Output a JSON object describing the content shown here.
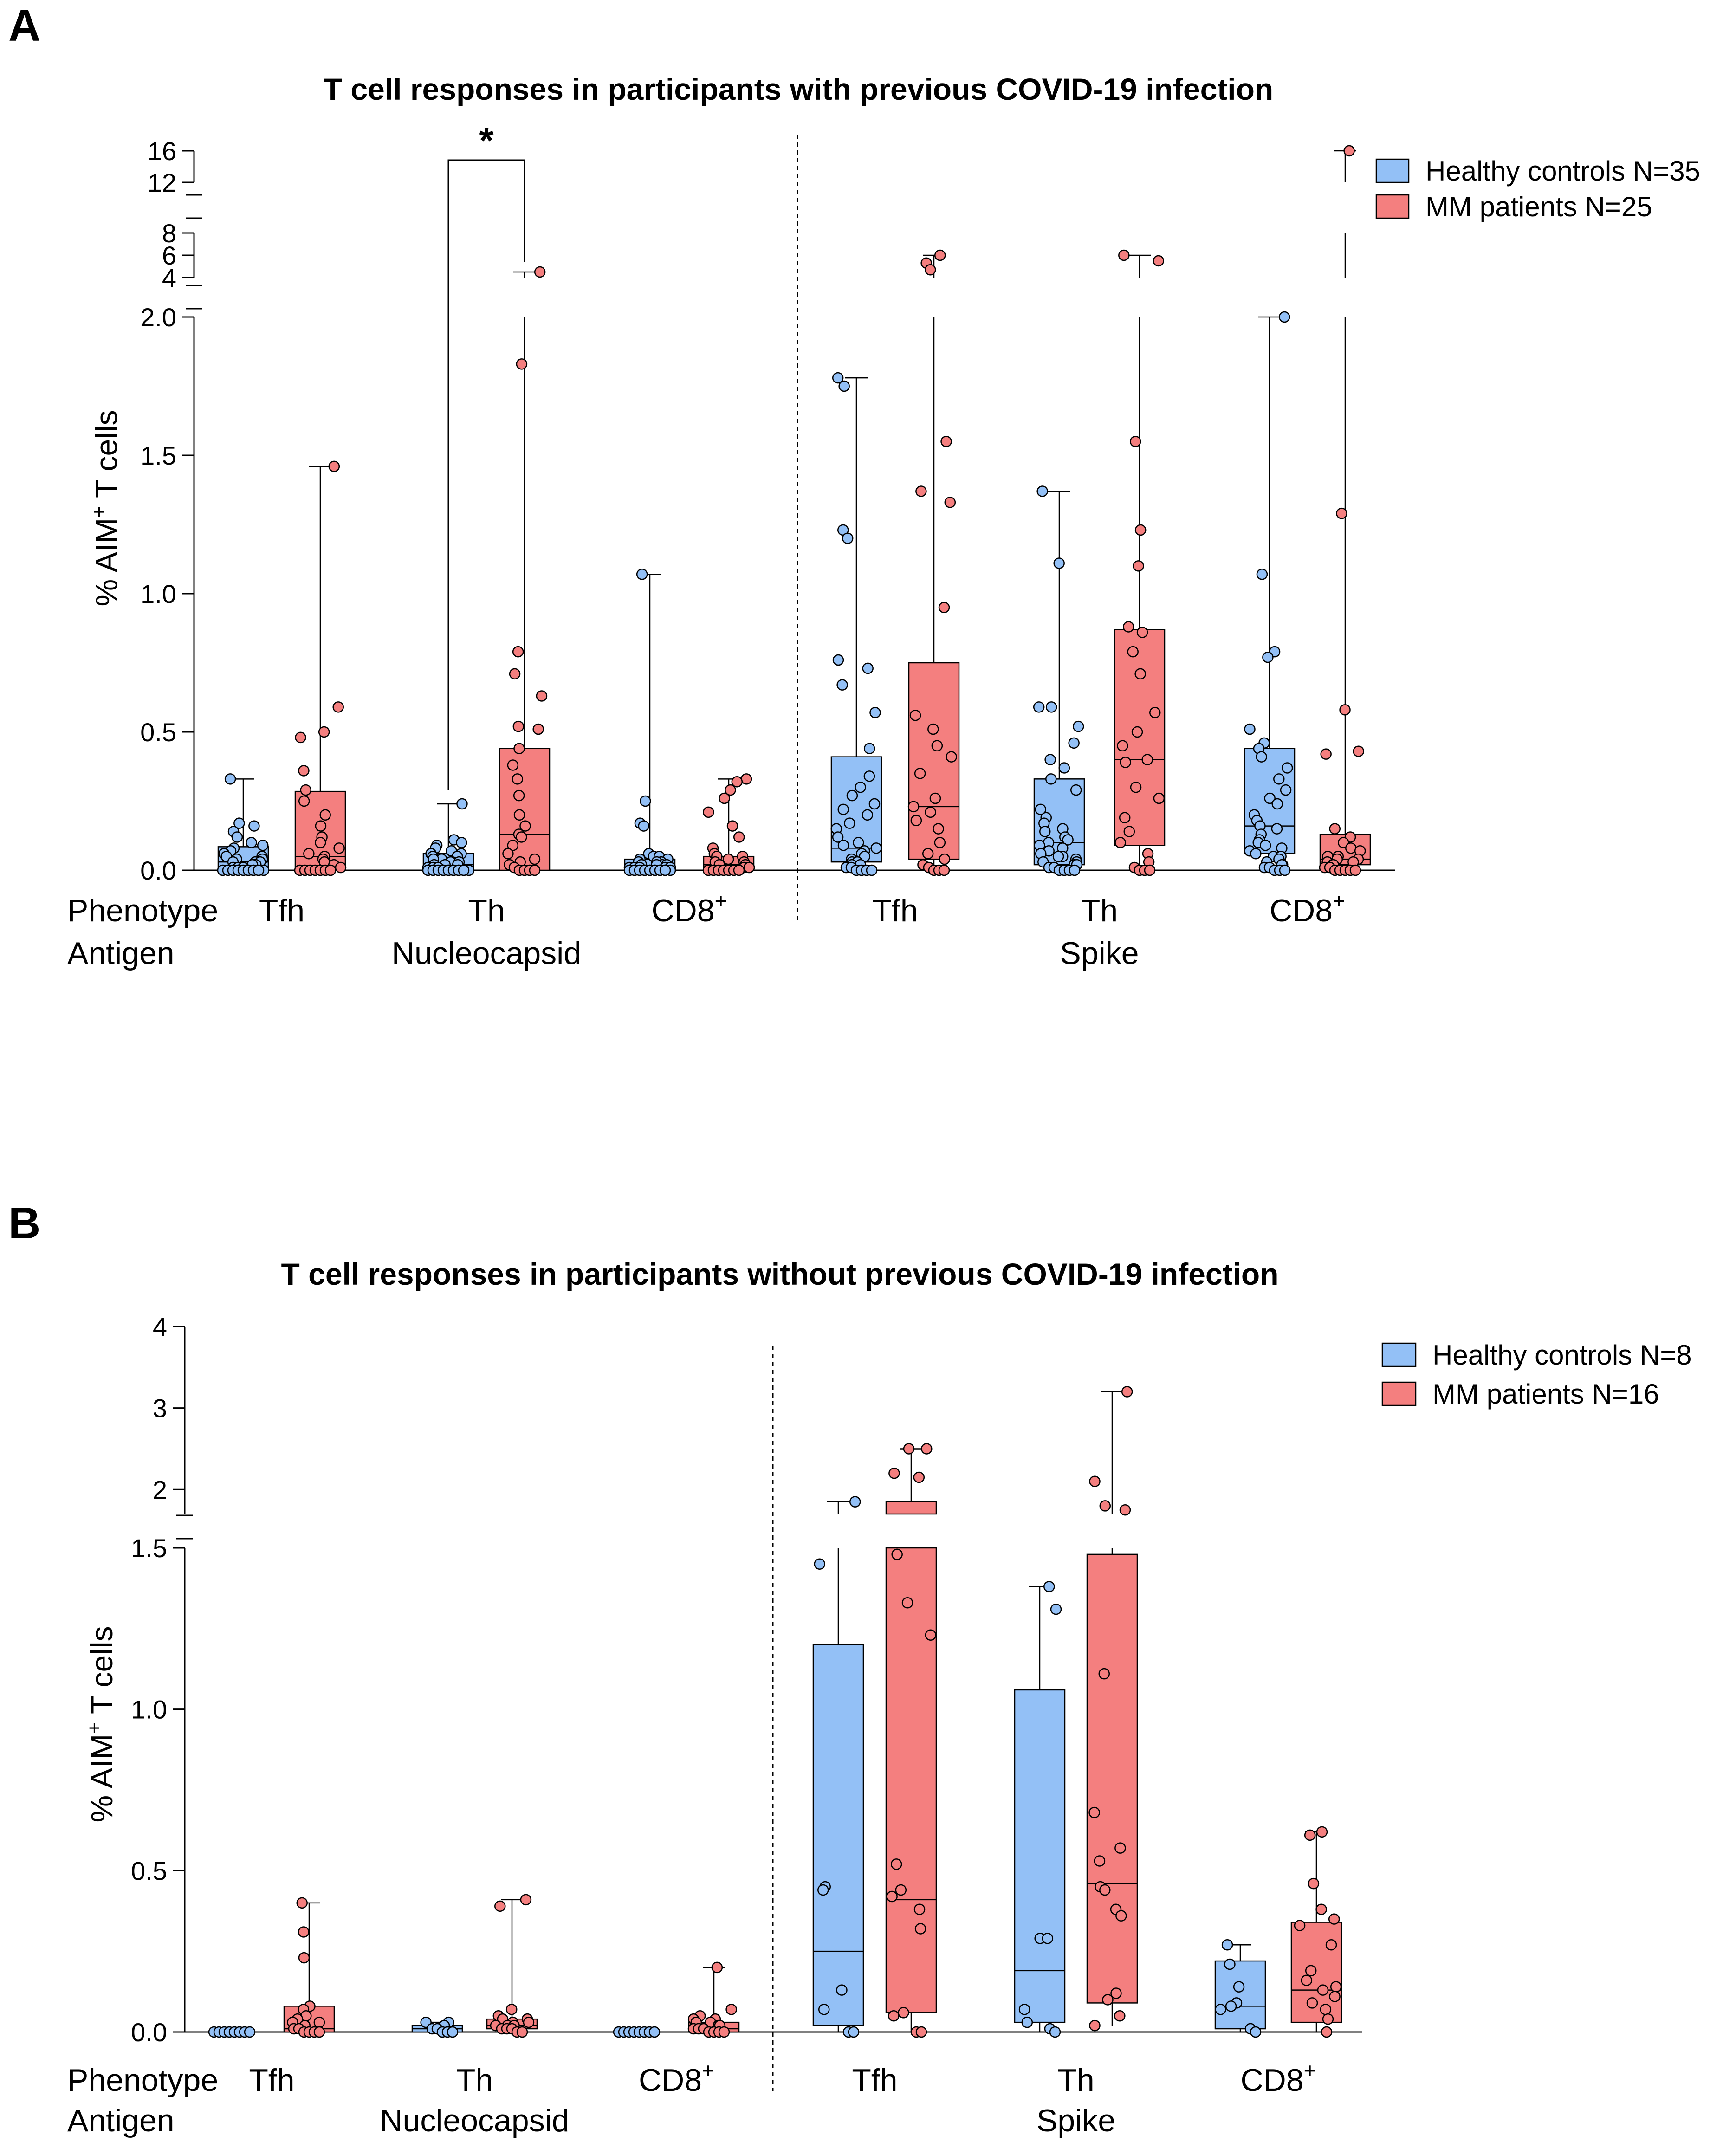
{
  "colors": {
    "healthy": "#93C0F6",
    "mm": "#F47F7F",
    "stroke": "#000000"
  },
  "chart_data": [
    {
      "type": "box",
      "panel": "A",
      "title": "T cell responses in participants with previous COVID-19 infection",
      "ylabel": "% AIM+ T cells",
      "ylabel_main": "% AIM",
      "ylabel_sup": "+",
      "ylabel_tail": " T cells",
      "row_labels": {
        "phenotype": "Phenotype",
        "antigen": "Antigen"
      },
      "y_axis": {
        "broken": true,
        "segments": [
          [
            0,
            2.0
          ],
          [
            4,
            8
          ],
          [
            12,
            16
          ]
        ]
      },
      "y_ticks": [
        "0.0",
        "0.5",
        "1.0",
        "1.5",
        "2.0",
        "4",
        "6",
        "8",
        "12",
        "16"
      ],
      "y_tick_values": [
        0,
        0.5,
        1.0,
        1.5,
        2.0,
        4,
        6,
        8,
        12,
        16
      ],
      "series": [
        {
          "name": "Healthy controls N=35"
        },
        {
          "name": "MM patients N=25"
        }
      ],
      "groups": [
        {
          "phenotype": "Tfh",
          "antigen": ""
        },
        {
          "phenotype": "Th",
          "antigen": "Nucleocapsid"
        },
        {
          "phenotype": "CD8",
          "phenotype_sup": "+",
          "antigen": ""
        },
        {
          "phenotype": "Tfh",
          "antigen": ""
        },
        {
          "phenotype": "Th",
          "antigen": "Spike"
        },
        {
          "phenotype": "CD8",
          "phenotype_sup": "+",
          "antigen": ""
        }
      ],
      "significance": [
        {
          "group": 1,
          "label": "*"
        }
      ],
      "boxes": [
        {
          "group": 0,
          "series": 0,
          "min": 0.0,
          "q1": 0.005,
          "median": 0.03,
          "q3": 0.085,
          "max": 0.33,
          "points": [
            0.33,
            0.17,
            0.16,
            0.14,
            0.12,
            0.1,
            0.09,
            0.08,
            0.07,
            0.06,
            0.05,
            0.05,
            0.04,
            0.04,
            0.03,
            0.03,
            0.03,
            0.02,
            0.02,
            0.02,
            0.01,
            0.01,
            0.01,
            0.0,
            0.0,
            0.0,
            0.0,
            0.0,
            0.0,
            0.0,
            0.0,
            0.0,
            0.0,
            0.0,
            0.0
          ]
        },
        {
          "group": 0,
          "series": 1,
          "min": 0.0,
          "q1": 0.0,
          "median": 0.05,
          "q3": 0.285,
          "max": 1.46,
          "points": [
            1.46,
            0.59,
            0.5,
            0.48,
            0.36,
            0.29,
            0.25,
            0.2,
            0.16,
            0.12,
            0.1,
            0.08,
            0.06,
            0.05,
            0.04,
            0.03,
            0.02,
            0.01,
            0.0,
            0.0,
            0.0,
            0.0,
            0.0,
            0.0,
            0.0
          ]
        },
        {
          "group": 1,
          "series": 0,
          "min": 0.0,
          "q1": 0.0,
          "median": 0.02,
          "q3": 0.06,
          "max": 0.24,
          "points": [
            0.24,
            0.11,
            0.1,
            0.09,
            0.08,
            0.07,
            0.06,
            0.06,
            0.05,
            0.05,
            0.04,
            0.04,
            0.03,
            0.03,
            0.03,
            0.02,
            0.02,
            0.02,
            0.01,
            0.01,
            0.01,
            0.0,
            0.0,
            0.0,
            0.0,
            0.0,
            0.0,
            0.0,
            0.0,
            0.0,
            0.0,
            0.0,
            0.0,
            0.0,
            0.0
          ]
        },
        {
          "group": 1,
          "series": 1,
          "min": 0.0,
          "q1": 0.0,
          "median": 0.13,
          "q3": 0.44,
          "max": 4.5,
          "points": [
            4.5,
            1.83,
            0.79,
            0.71,
            0.63,
            0.52,
            0.51,
            0.44,
            0.38,
            0.33,
            0.27,
            0.2,
            0.16,
            0.13,
            0.12,
            0.09,
            0.06,
            0.04,
            0.03,
            0.02,
            0.01,
            0.0,
            0.0,
            0.0,
            0.0
          ]
        },
        {
          "group": 2,
          "series": 0,
          "min": 0.0,
          "q1": 0.0,
          "median": 0.01,
          "q3": 0.04,
          "max": 1.07,
          "points": [
            1.07,
            0.25,
            0.17,
            0.16,
            0.06,
            0.05,
            0.05,
            0.04,
            0.04,
            0.03,
            0.03,
            0.03,
            0.02,
            0.02,
            0.02,
            0.02,
            0.01,
            0.01,
            0.01,
            0.01,
            0.01,
            0.0,
            0.0,
            0.0,
            0.0,
            0.0,
            0.0,
            0.0,
            0.0,
            0.0,
            0.0,
            0.0,
            0.0,
            0.0,
            0.0
          ]
        },
        {
          "group": 2,
          "series": 1,
          "min": 0.0,
          "q1": 0.0,
          "median": 0.02,
          "q3": 0.05,
          "max": 0.33,
          "points": [
            0.33,
            0.32,
            0.29,
            0.26,
            0.21,
            0.16,
            0.12,
            0.08,
            0.06,
            0.05,
            0.05,
            0.04,
            0.03,
            0.03,
            0.02,
            0.02,
            0.01,
            0.01,
            0.0,
            0.0,
            0.0,
            0.0,
            0.0,
            0.0,
            0.0
          ]
        },
        {
          "group": 3,
          "series": 0,
          "min": 0.0,
          "q1": 0.03,
          "median": 0.08,
          "q3": 0.41,
          "max": 1.78,
          "points": [
            1.78,
            1.75,
            1.23,
            1.2,
            0.76,
            0.73,
            0.67,
            0.57,
            0.44,
            0.34,
            0.3,
            0.27,
            0.24,
            0.22,
            0.2,
            0.17,
            0.15,
            0.12,
            0.1,
            0.09,
            0.08,
            0.07,
            0.06,
            0.05,
            0.04,
            0.03,
            0.03,
            0.02,
            0.02,
            0.01,
            0.01,
            0.0,
            0.0,
            0.0,
            0.0
          ]
        },
        {
          "group": 3,
          "series": 1,
          "min": 0.0,
          "q1": 0.04,
          "median": 0.23,
          "q3": 0.75,
          "max": 6.0,
          "points": [
            6.0,
            5.3,
            4.7,
            1.55,
            1.37,
            1.33,
            0.95,
            0.56,
            0.51,
            0.45,
            0.41,
            0.35,
            0.26,
            0.23,
            0.21,
            0.18,
            0.15,
            0.1,
            0.06,
            0.04,
            0.02,
            0.01,
            0.0,
            0.0,
            0.0
          ]
        },
        {
          "group": 4,
          "series": 0,
          "min": 0.0,
          "q1": 0.02,
          "median": 0.1,
          "q3": 0.33,
          "max": 1.37,
          "points": [
            1.37,
            1.11,
            0.59,
            0.59,
            0.52,
            0.46,
            0.4,
            0.37,
            0.33,
            0.29,
            0.22,
            0.19,
            0.17,
            0.15,
            0.14,
            0.12,
            0.11,
            0.1,
            0.09,
            0.08,
            0.07,
            0.06,
            0.05,
            0.05,
            0.04,
            0.03,
            0.03,
            0.02,
            0.02,
            0.01,
            0.01,
            0.0,
            0.0,
            0.0,
            0.0
          ]
        },
        {
          "group": 4,
          "series": 1,
          "min": 0.0,
          "q1": 0.09,
          "median": 0.4,
          "q3": 0.87,
          "max": 6.0,
          "points": [
            6.0,
            5.5,
            1.55,
            1.23,
            1.1,
            0.88,
            0.86,
            0.79,
            0.71,
            0.57,
            0.5,
            0.45,
            0.4,
            0.39,
            0.3,
            0.26,
            0.19,
            0.14,
            0.1,
            0.06,
            0.03,
            0.01,
            0.0,
            0.0,
            0.0
          ]
        },
        {
          "group": 5,
          "series": 0,
          "min": 0.0,
          "q1": 0.06,
          "median": 0.16,
          "q3": 0.44,
          "max": 2.1,
          "points": [
            2.1,
            1.07,
            0.79,
            0.77,
            0.51,
            0.46,
            0.44,
            0.41,
            0.37,
            0.33,
            0.29,
            0.26,
            0.24,
            0.2,
            0.18,
            0.16,
            0.15,
            0.13,
            0.11,
            0.1,
            0.09,
            0.08,
            0.07,
            0.06,
            0.05,
            0.05,
            0.04,
            0.03,
            0.02,
            0.02,
            0.01,
            0.01,
            0.0,
            0.0,
            0.0
          ]
        },
        {
          "group": 5,
          "series": 1,
          "min": 0.0,
          "q1": 0.02,
          "median": 0.04,
          "q3": 0.13,
          "max": 16.0,
          "points": [
            16.0,
            1.29,
            0.58,
            0.43,
            0.42,
            0.15,
            0.12,
            0.1,
            0.08,
            0.07,
            0.05,
            0.05,
            0.04,
            0.04,
            0.03,
            0.03,
            0.02,
            0.02,
            0.01,
            0.01,
            0.0,
            0.0,
            0.0,
            0.0,
            0.0
          ]
        }
      ]
    },
    {
      "type": "box",
      "panel": "B",
      "title": "T cell responses in participants without previous COVID-19 infection",
      "ylabel": "% AIM+ T cells",
      "ylabel_main": "% AIM",
      "ylabel_sup": "+",
      "ylabel_tail": " T cells",
      "row_labels": {
        "phenotype": "Phenotype",
        "antigen": "Antigen"
      },
      "y_axis": {
        "broken": true,
        "segments": [
          [
            0,
            1.5
          ],
          [
            1.7,
            4
          ]
        ]
      },
      "y_ticks": [
        "0.0",
        "0.5",
        "1.0",
        "1.5",
        "2",
        "3",
        "4"
      ],
      "y_tick_values": [
        0,
        0.5,
        1.0,
        1.5,
        2,
        3,
        4
      ],
      "series": [
        {
          "name": "Healthy controls N=8"
        },
        {
          "name": "MM patients N=16"
        }
      ],
      "groups": [
        {
          "phenotype": "Tfh",
          "antigen": ""
        },
        {
          "phenotype": "Th",
          "antigen": "Nucleocapsid"
        },
        {
          "phenotype": "CD8",
          "phenotype_sup": "+",
          "antigen": ""
        },
        {
          "phenotype": "Tfh",
          "antigen": ""
        },
        {
          "phenotype": "Th",
          "antigen": "Spike"
        },
        {
          "phenotype": "CD8",
          "phenotype_sup": "+",
          "antigen": ""
        }
      ],
      "significance": [],
      "boxes": [
        {
          "group": 0,
          "series": 0,
          "min": 0.0,
          "q1": 0.0,
          "median": 0.0,
          "q3": 0.0,
          "max": 0.0,
          "points": [
            0,
            0,
            0,
            0,
            0,
            0,
            0,
            0
          ]
        },
        {
          "group": 0,
          "series": 1,
          "min": 0.0,
          "q1": 0.0,
          "median": 0.01,
          "q3": 0.08,
          "max": 0.4,
          "points": [
            0.4,
            0.31,
            0.23,
            0.08,
            0.07,
            0.05,
            0.04,
            0.03,
            0.03,
            0.02,
            0.01,
            0.01,
            0.0,
            0.0,
            0.0,
            0.0
          ]
        },
        {
          "group": 1,
          "series": 0,
          "min": 0.0,
          "q1": 0.0,
          "median": 0.01,
          "q3": 0.02,
          "max": 0.03,
          "points": [
            0.03,
            0.03,
            0.02,
            0.01,
            0.01,
            0.0,
            0.0,
            0.0
          ]
        },
        {
          "group": 1,
          "series": 1,
          "min": 0.0,
          "q1": 0.01,
          "median": 0.02,
          "q3": 0.04,
          "max": 0.41,
          "points": [
            0.41,
            0.39,
            0.07,
            0.05,
            0.04,
            0.04,
            0.03,
            0.03,
            0.02,
            0.02,
            0.02,
            0.01,
            0.01,
            0.01,
            0.0,
            0.0
          ]
        },
        {
          "group": 2,
          "series": 0,
          "min": 0.0,
          "q1": 0.0,
          "median": 0.0,
          "q3": 0.0,
          "max": 0.0,
          "points": [
            0,
            0,
            0,
            0,
            0,
            0,
            0,
            0
          ]
        },
        {
          "group": 2,
          "series": 1,
          "min": 0.0,
          "q1": 0.0,
          "median": 0.01,
          "q3": 0.03,
          "max": 0.2,
          "points": [
            0.2,
            0.07,
            0.05,
            0.04,
            0.04,
            0.03,
            0.03,
            0.02,
            0.02,
            0.01,
            0.01,
            0.01,
            0.0,
            0.0,
            0.0,
            0.0
          ]
        },
        {
          "group": 3,
          "series": 0,
          "min": 0.0,
          "q1": 0.02,
          "median": 0.25,
          "q3": 1.2,
          "max": 1.85,
          "points": [
            1.85,
            1.45,
            0.45,
            0.44,
            0.13,
            0.07,
            0.0,
            0.0
          ]
        },
        {
          "group": 3,
          "series": 1,
          "min": 0.0,
          "q1": 0.06,
          "median": 0.41,
          "q3": 1.85,
          "max": 2.5,
          "points": [
            2.5,
            2.5,
            2.2,
            2.15,
            1.48,
            1.33,
            1.23,
            0.52,
            0.44,
            0.42,
            0.38,
            0.32,
            0.06,
            0.05,
            0.0,
            0.0
          ]
        },
        {
          "group": 4,
          "series": 0,
          "min": 0.0,
          "q1": 0.03,
          "median": 0.19,
          "q3": 1.06,
          "max": 1.38,
          "points": [
            1.38,
            1.31,
            0.29,
            0.29,
            0.07,
            0.03,
            0.01,
            0.0
          ]
        },
        {
          "group": 4,
          "series": 1,
          "min": 0.02,
          "q1": 0.09,
          "median": 0.46,
          "q3": 1.48,
          "max": 3.2,
          "points": [
            3.2,
            2.1,
            1.8,
            1.75,
            1.11,
            0.68,
            0.57,
            0.53,
            0.45,
            0.44,
            0.38,
            0.36,
            0.12,
            0.1,
            0.05,
            0.02
          ]
        },
        {
          "group": 5,
          "series": 0,
          "min": 0.0,
          "q1": 0.01,
          "median": 0.08,
          "q3": 0.22,
          "max": 0.27,
          "points": [
            0.27,
            0.21,
            0.14,
            0.09,
            0.08,
            0.07,
            0.01,
            0.0
          ]
        },
        {
          "group": 5,
          "series": 1,
          "min": 0.0,
          "q1": 0.03,
          "median": 0.13,
          "q3": 0.34,
          "max": 0.62,
          "points": [
            0.62,
            0.61,
            0.46,
            0.38,
            0.35,
            0.33,
            0.27,
            0.19,
            0.16,
            0.14,
            0.13,
            0.11,
            0.09,
            0.07,
            0.04,
            0.0
          ]
        }
      ]
    }
  ]
}
